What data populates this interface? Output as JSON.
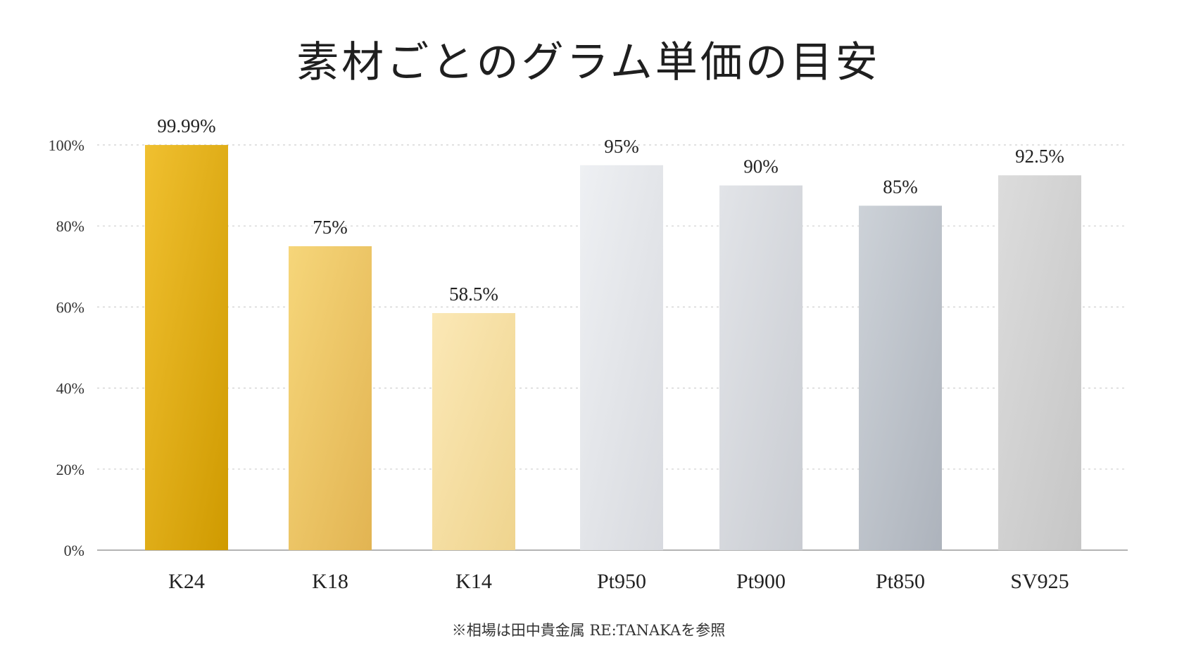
{
  "chart_data": {
    "type": "bar",
    "title": "素材ごとのグラム単価の目安",
    "categories": [
      "K24",
      "K18",
      "K14",
      "Pt950",
      "Pt900",
      "Pt850",
      "SV925"
    ],
    "values": [
      99.99,
      75,
      58.5,
      95,
      90,
      85,
      92.5
    ],
    "value_labels": [
      "99.99%",
      "75%",
      "58.5%",
      "95%",
      "90%",
      "85%",
      "92.5%"
    ],
    "ylim": [
      0,
      100
    ],
    "yticks": [
      0,
      20,
      40,
      60,
      80,
      100
    ],
    "ytick_labels": [
      "0%",
      "20%",
      "40%",
      "60%",
      "80%",
      "100%"
    ],
    "grid": true,
    "legend": "none",
    "bar_colors": [
      [
        "#f0c030",
        "#cf9a00"
      ],
      [
        "#f6d67a",
        "#e2b452"
      ],
      [
        "#fbe8b6",
        "#efd48e"
      ],
      [
        "#eef0f3",
        "#d8dadf"
      ],
      [
        "#e2e4e8",
        "#c9ccd2"
      ],
      [
        "#cdd2d8",
        "#adb3bc"
      ],
      [
        "#dcdcdc",
        "#c6c6c6"
      ]
    ],
    "footnote": "※相場は田中貴金属 RE:TANAKAを参照"
  }
}
